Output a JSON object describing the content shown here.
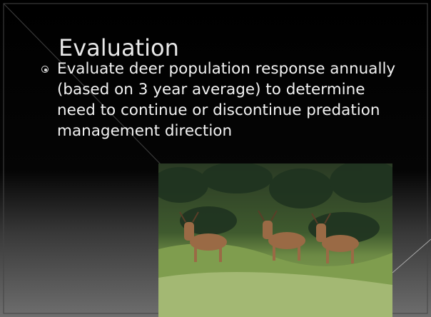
{
  "slide": {
    "title": "Evaluation",
    "bullets": [
      "Evaluate deer population response annually (based on 3 year average) to determine need to continue or discontinue predation management direction"
    ]
  }
}
